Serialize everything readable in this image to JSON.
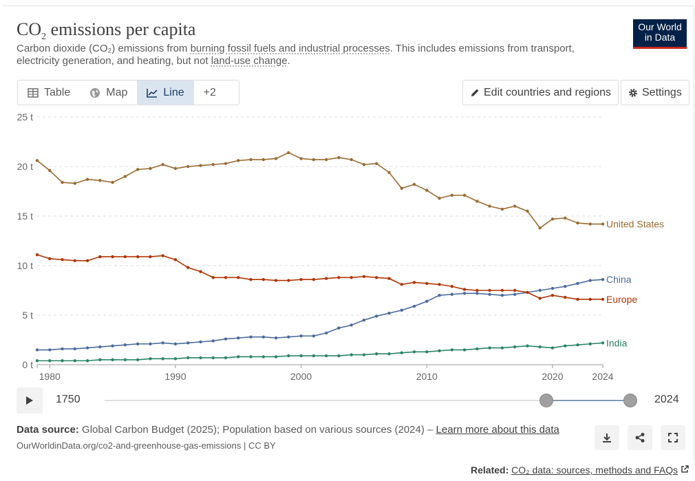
{
  "header": {
    "title": "CO",
    "title_sub": "2",
    "title_rest": " emissions per capita",
    "subtitle_pre": "Carbon dioxide (CO₂) emissions from ",
    "subtitle_link1": "burning fossil fuels and industrial processes",
    "subtitle_mid": ". This includes emissions from transport, electricity generation, and heating, but not ",
    "subtitle_link2": "land-use change",
    "subtitle_end": ".",
    "logo_line1": "Our World",
    "logo_line2": "in Data"
  },
  "tabs": [
    {
      "label": "Table",
      "icon": "table-icon"
    },
    {
      "label": "Map",
      "icon": "globe-icon"
    },
    {
      "label": "Line",
      "icon": "line-chart-icon"
    },
    {
      "label": "+2",
      "icon": ""
    }
  ],
  "buttons": {
    "edit": "Edit countries and regions",
    "settings": "Settings"
  },
  "timeline": {
    "start_label": "1750",
    "end_label": "2024"
  },
  "footer": {
    "source_label": "Data source:",
    "source_text": " Global Carbon Budget (2025); Population based on various sources (2024) – ",
    "learn_more": "Learn more about this data",
    "url": "OurWorldinData.org/co2-and-greenhouse-gas-emissions | CC BY",
    "related_label": "Related:",
    "related_link": "CO₂ data: sources, methods and FAQs"
  },
  "colors": {
    "us": "#9a6b33",
    "europe": "#b13507",
    "china": "#4c6a9c",
    "india": "#2c8465",
    "grid": "#dddddd",
    "axis_text": "#666666"
  },
  "chart_data": {
    "type": "line",
    "x": [
      1979,
      1980,
      1981,
      1982,
      1983,
      1984,
      1985,
      1986,
      1987,
      1988,
      1989,
      1990,
      1991,
      1992,
      1993,
      1994,
      1995,
      1996,
      1997,
      1998,
      1999,
      2000,
      2001,
      2002,
      2003,
      2004,
      2005,
      2006,
      2007,
      2008,
      2009,
      2010,
      2011,
      2012,
      2013,
      2014,
      2015,
      2016,
      2017,
      2018,
      2019,
      2020,
      2021,
      2022,
      2023,
      2024
    ],
    "xticks": [
      1980,
      1990,
      2000,
      2010,
      2020,
      2024
    ],
    "yticks": [
      0,
      5,
      10,
      15,
      20,
      25
    ],
    "ytick_labels": [
      "0 t",
      "5 t",
      "10 t",
      "15 t",
      "20 t",
      "25 t"
    ],
    "ylim": [
      0,
      25
    ],
    "xlim": [
      1979,
      2024
    ],
    "series": [
      {
        "name": "United States",
        "color_key": "us",
        "values": [
          20.6,
          19.6,
          18.4,
          18.3,
          18.7,
          18.6,
          18.4,
          19.0,
          19.7,
          19.8,
          20.2,
          19.8,
          20.0,
          20.1,
          20.2,
          20.3,
          20.6,
          20.7,
          20.7,
          20.8,
          21.4,
          20.8,
          20.7,
          20.7,
          20.9,
          20.7,
          20.2,
          20.3,
          19.4,
          17.8,
          18.2,
          17.6,
          16.8,
          17.1,
          17.1,
          16.5,
          16.0,
          15.7,
          16.0,
          15.5,
          13.8,
          14.7,
          14.8,
          14.3,
          14.2,
          14.2
        ]
      },
      {
        "name": "China",
        "color_key": "china",
        "values": [
          1.5,
          1.5,
          1.6,
          1.6,
          1.7,
          1.8,
          1.9,
          2.0,
          2.1,
          2.1,
          2.2,
          2.1,
          2.2,
          2.3,
          2.4,
          2.6,
          2.7,
          2.8,
          2.8,
          2.7,
          2.8,
          2.9,
          2.9,
          3.2,
          3.7,
          4.0,
          4.5,
          4.9,
          5.2,
          5.5,
          5.9,
          6.4,
          7.0,
          7.1,
          7.2,
          7.2,
          7.1,
          7.0,
          7.1,
          7.3,
          7.5,
          7.7,
          7.9,
          8.2,
          8.5,
          8.6
        ]
      },
      {
        "name": "Europe",
        "color_key": "europe",
        "values": [
          11.1,
          10.7,
          10.6,
          10.5,
          10.5,
          10.9,
          10.9,
          10.9,
          10.9,
          10.9,
          11.0,
          10.6,
          9.8,
          9.4,
          8.8,
          8.8,
          8.8,
          8.6,
          8.6,
          8.5,
          8.5,
          8.6,
          8.6,
          8.7,
          8.8,
          8.8,
          8.9,
          8.8,
          8.7,
          8.1,
          8.3,
          8.2,
          8.1,
          7.9,
          7.6,
          7.5,
          7.5,
          7.5,
          7.5,
          7.3,
          6.7,
          7.0,
          6.8,
          6.6,
          6.6,
          6.6
        ]
      },
      {
        "name": "India",
        "color_key": "india",
        "values": [
          0.4,
          0.4,
          0.4,
          0.4,
          0.4,
          0.5,
          0.5,
          0.5,
          0.5,
          0.6,
          0.6,
          0.6,
          0.7,
          0.7,
          0.7,
          0.7,
          0.8,
          0.8,
          0.8,
          0.8,
          0.9,
          0.9,
          0.9,
          0.9,
          0.9,
          1.0,
          1.0,
          1.1,
          1.1,
          1.2,
          1.3,
          1.3,
          1.4,
          1.5,
          1.5,
          1.6,
          1.7,
          1.7,
          1.8,
          1.9,
          1.8,
          1.7,
          1.9,
          2.0,
          2.1,
          2.2
        ]
      }
    ]
  }
}
